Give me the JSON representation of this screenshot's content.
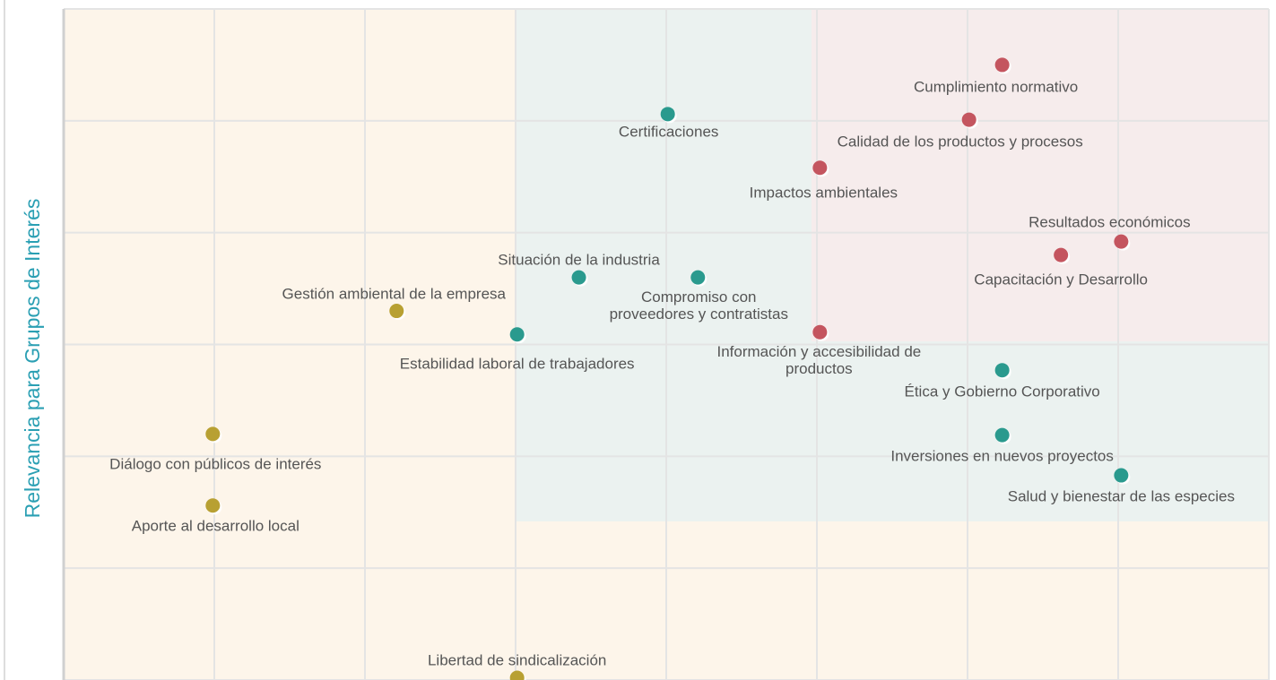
{
  "chart_data": {
    "type": "scatter",
    "ylabel": "Relevancia para Grupos de Interés",
    "labels": [
      "Cumplimiento normativo",
      "Calidad de los productos y procesos",
      "Certificaciones",
      "Impactos ambientales",
      "Resultados económicos",
      "Capacitación y Desarrollo",
      "Situación de la industria",
      "Compromiso con\nproveedores y contratistas",
      "Gestión ambiental de la empresa",
      "Estabilidad laboral de trabajadores",
      "Información y accesibilidad de\nproductos",
      "Ética y Gobierno Corporativo",
      "Inversiones en nuevos proyectos",
      "Salud y bienestar de las especies",
      "Diálogo con públicos de interés",
      "Aporte al desarrollo local",
      "Libertad de sindicalización"
    ],
    "x": [
      6.23,
      6.01,
      4.01,
      5.02,
      7.02,
      6.62,
      3.42,
      4.21,
      2.21,
      3.01,
      5.02,
      6.23,
      6.23,
      7.02,
      0.99,
      0.99,
      3.01
    ],
    "values": [
      5.5,
      5.01,
      5.06,
      4.58,
      3.92,
      3.8,
      3.6,
      3.6,
      3.3,
      3.09,
      3.11,
      2.77,
      2.19,
      1.83,
      2.2,
      1.56,
      0.02
    ],
    "colors": [
      "#c4555f",
      "#c4555f",
      "#2a9a8e",
      "#c4555f",
      "#c4555f",
      "#c4555f",
      "#2a9a8e",
      "#2a9a8e",
      "#b8a032",
      "#2a9a8e",
      "#c4555f",
      "#2a9a8e",
      "#2a9a8e",
      "#2a9a8e",
      "#b8a032",
      "#b8a032",
      "#b8a032"
    ],
    "xlim": [
      0,
      8
    ],
    "xticks": [
      0,
      1,
      2,
      3,
      4,
      5,
      6,
      7,
      8
    ],
    "ylim": [
      0,
      6
    ],
    "yticks": [
      0,
      1,
      2,
      3,
      4,
      5,
      6
    ],
    "grid": true
  }
}
